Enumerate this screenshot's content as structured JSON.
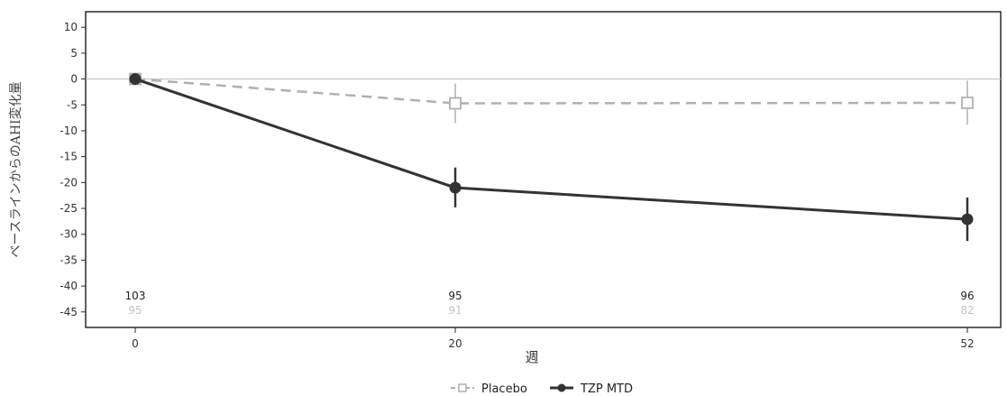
{
  "chart_data": {
    "type": "line",
    "ylabel": "ベースラインからのAHI変化量",
    "xlabel": "週",
    "x": [
      0,
      20,
      52
    ],
    "x_tick_labels": [
      "0",
      "20",
      "52"
    ],
    "ylim": [
      -48,
      13
    ],
    "y_ticks": [
      10,
      5,
      0,
      -5,
      -10,
      -15,
      -20,
      -25,
      -30,
      -35,
      -40,
      -45
    ],
    "grid": false,
    "reference_line_y": 0,
    "legend_position": "bottom-center",
    "series": [
      {
        "name": "Placebo",
        "color": "#b0b0b0",
        "style": "dashed",
        "marker": "open-square",
        "values": [
          0,
          -4.7,
          -4.6
        ],
        "error_low": [
          0,
          -8.5,
          -8.8
        ],
        "error_high": [
          0,
          -0.9,
          -0.3
        ],
        "n_at_risk": [
          "95",
          "91",
          "82"
        ]
      },
      {
        "name": "TZP MTD",
        "color": "#333333",
        "style": "solid",
        "marker": "filled-circle",
        "values": [
          0,
          -21,
          -27.1
        ],
        "error_low": [
          0,
          -24.8,
          -31.3
        ],
        "error_high": [
          0,
          -17.1,
          -22.9
        ],
        "n_at_risk": [
          "103",
          "95",
          "96"
        ]
      }
    ]
  }
}
